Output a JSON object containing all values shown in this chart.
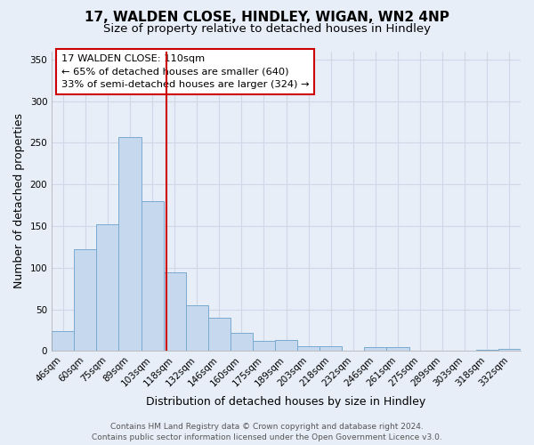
{
  "title": "17, WALDEN CLOSE, HINDLEY, WIGAN, WN2 4NP",
  "subtitle": "Size of property relative to detached houses in Hindley",
  "xlabel": "Distribution of detached houses by size in Hindley",
  "ylabel": "Number of detached properties",
  "bin_labels": [
    "46sqm",
    "60sqm",
    "75sqm",
    "89sqm",
    "103sqm",
    "118sqm",
    "132sqm",
    "146sqm",
    "160sqm",
    "175sqm",
    "189sqm",
    "203sqm",
    "218sqm",
    "232sqm",
    "246sqm",
    "261sqm",
    "275sqm",
    "289sqm",
    "303sqm",
    "318sqm",
    "332sqm"
  ],
  "bar_values": [
    24,
    122,
    152,
    257,
    180,
    95,
    55,
    40,
    22,
    12,
    13,
    6,
    6,
    0,
    5,
    5,
    0,
    0,
    0,
    2,
    3
  ],
  "bar_color": "#c5d8ee",
  "bar_edge_color": "#7aaad0",
  "vline_x": 4.62,
  "vline_color": "#cc0000",
  "annotation_title": "17 WALDEN CLOSE: 110sqm",
  "annotation_line1": "← 65% of detached houses are smaller (640)",
  "annotation_line2": "33% of semi-detached houses are larger (324) →",
  "annotation_box_color": "#ffffff",
  "annotation_box_edge": "#cc0000",
  "ylim": [
    0,
    360
  ],
  "yticks": [
    0,
    50,
    100,
    150,
    200,
    250,
    300,
    350
  ],
  "footer_line1": "Contains HM Land Registry data © Crown copyright and database right 2024.",
  "footer_line2": "Contains public sector information licensed under the Open Government Licence v3.0.",
  "bg_color": "#e8eef8",
  "grid_color": "#d0d8e8",
  "title_fontsize": 11,
  "subtitle_fontsize": 9.5,
  "axis_label_fontsize": 9,
  "tick_fontsize": 7.5,
  "footer_fontsize": 6.5
}
